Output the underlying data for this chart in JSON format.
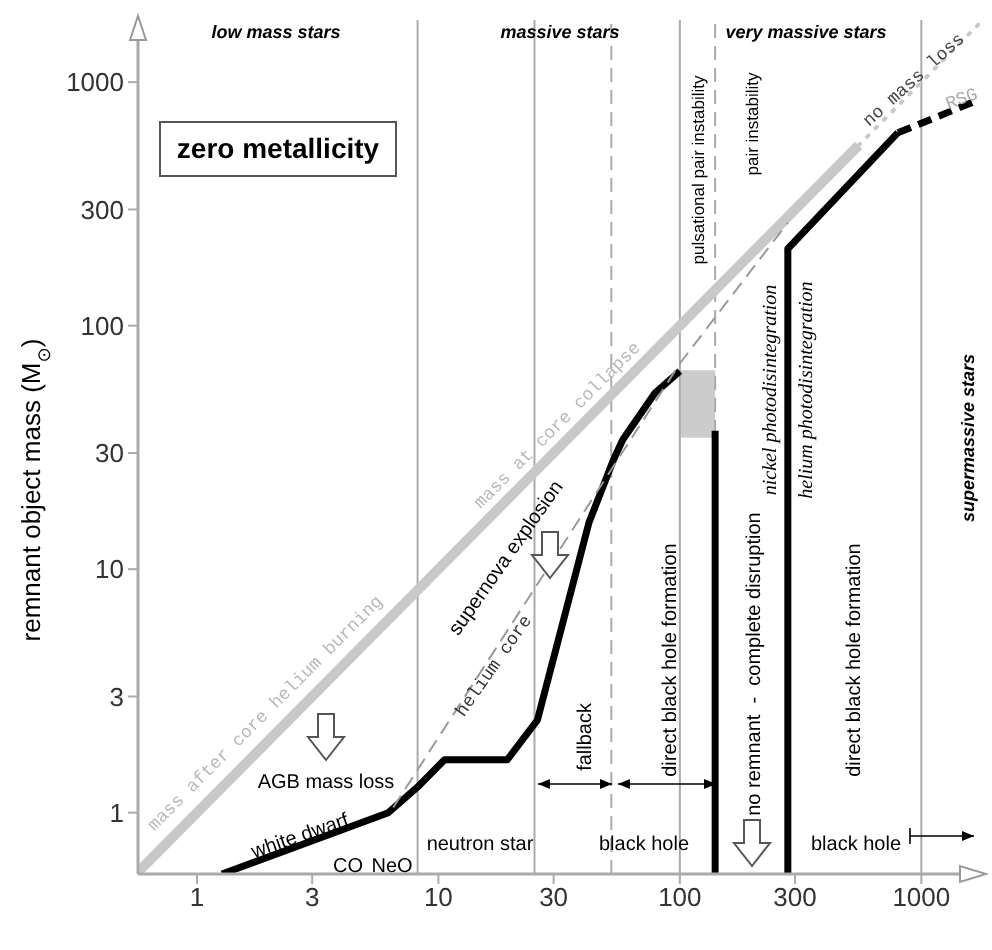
{
  "chart_data": {
    "type": "line",
    "ylabel": "remnant object mass (M$_{⊙}$)",
    "log": "xy",
    "xlim": [
      0.57,
      1750
    ],
    "ylim": [
      0.56,
      1800
    ],
    "xticks": [
      1,
      3,
      10,
      30,
      100,
      300,
      1000
    ],
    "yticks": [
      1,
      3,
      10,
      30,
      100,
      300,
      1000
    ],
    "grid": false,
    "series": [
      {
        "color": "#000000",
        "x": [
          1.27,
          6.2,
          8.3,
          10.6,
          19.3,
          25.7,
          42,
          53,
          58,
          79,
          100
        ],
        "values": [
          0.56,
          1,
          1.29,
          1.65,
          1.65,
          2.4,
          15.5,
          28,
          34,
          53,
          65
        ]
      },
      {
        "color": "#000000",
        "x": [
          140,
          140
        ],
        "values": [
          37,
          0.56
        ]
      },
      {
        "color": "#000000",
        "x": [
          280,
          280,
          800
        ],
        "values": [
          0.56,
          207,
          620
        ]
      },
      {
        "color": "#000000",
        "x": [
          800,
          1700
        ],
        "values": [
          620,
          840
        ],
        "line_style": "dashed"
      },
      {
        "color": "#c8c8c8",
        "x": [
          0.57,
          550
        ],
        "values": [
          0.57,
          550
        ]
      },
      {
        "name": "no mass loss",
        "color": "#c8c8c8",
        "x": [
          550,
          1750
        ],
        "values": [
          550,
          1750
        ],
        "line_style": "dotted"
      },
      {
        "name": "helium core",
        "color": "#999999",
        "x": [
          6.5,
          100,
          280
        ],
        "values": [
          1.05,
          70,
          265
        ],
        "line_style": "dashed"
      },
      {
        "color": "#cccccc",
        "x": [
          100,
          140
        ],
        "values": [
          65,
          65
        ],
        "lower": [
          35,
          35
        ],
        "upper": [
          65,
          65
        ]
      }
    ],
    "ref_lines": [
      {
        "axis": "x",
        "value": 8.2,
        "color": "#aaaaaa"
      },
      {
        "axis": "x",
        "value": 25,
        "color": "#aaaaaa"
      },
      {
        "axis": "x",
        "value": 52,
        "color": "#aaaaaa",
        "line_style": "dashed"
      },
      {
        "axis": "x",
        "value": 100,
        "color": "#aaaaaa"
      },
      {
        "axis": "x",
        "value": 140,
        "color": "#aaaaaa",
        "line_style": "dashed"
      },
      {
        "axis": "x",
        "value": 1000,
        "color": "#aaaaaa"
      }
    ],
    "annotations": [
      "mass after core helium burning",
      "mass at core collapse",
      "low mass stars",
      "massive stars",
      "very massive stars",
      "supermassive stars",
      "zero metallicity",
      "AGB mass loss",
      "white dwarf",
      "CO",
      "NeO",
      "neutron star",
      "black hole",
      "black hole",
      "supernova explosion",
      {
        "text": "fallback",
        "x": 52,
        "y": 1.3
      },
      "direct black hole formation",
      "no remnant  -  complete disruption",
      "direct black hole formation",
      "pulsational pair instability",
      "pair instability",
      "nickel photodisintegration",
      "helium photodisintegration",
      "RSG"
    ]
  }
}
